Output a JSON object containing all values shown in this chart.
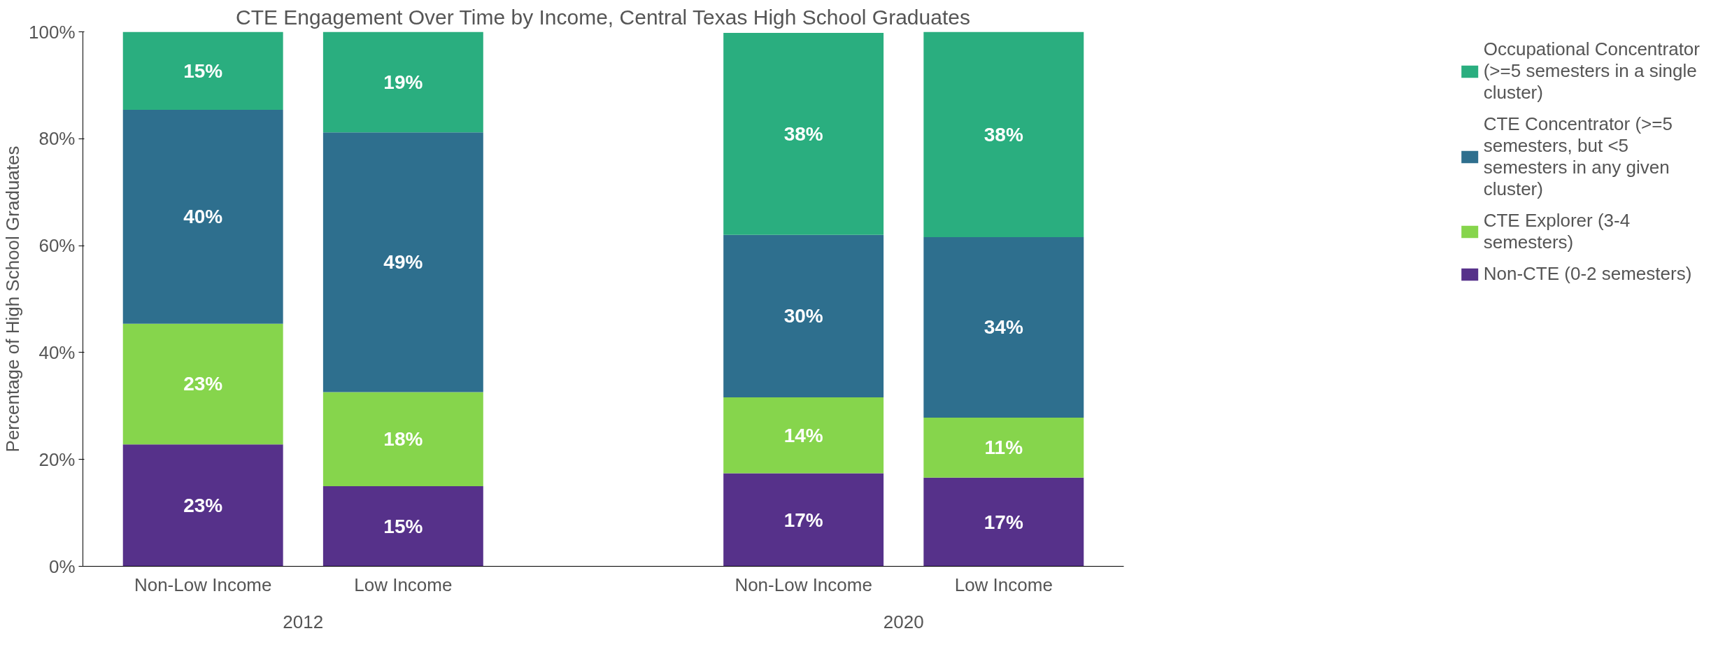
{
  "chart_data": {
    "type": "bar",
    "stacked": true,
    "title": "CTE Engagement Over Time by Income, Central Texas High School Graduates",
    "ylabel": "Percentage of High School Graduates",
    "categories": [
      "Non-Low Income",
      "Low Income",
      null,
      "Non-Low Income",
      "Low Income"
    ],
    "series": [
      {
        "name": "Non-CTE (0-2 semesters)",
        "color": "#56318a",
        "values": [
          22.8,
          15.0,
          null,
          17.4,
          16.6
        ],
        "value_labels": [
          "23%",
          "15%",
          null,
          "17%",
          "17%"
        ]
      },
      {
        "name": "CTE Explorer (3-4 semesters)",
        "color": "#86d54c",
        "values": [
          22.6,
          17.6,
          null,
          14.2,
          11.2
        ],
        "value_labels": [
          "23%",
          "18%",
          null,
          "14%",
          "11%"
        ]
      },
      {
        "name": "CTE Concentrator (>=5 semesters, but <5 semesters in any given cluster)",
        "color": "#2e6f8e",
        "values": [
          40.0,
          48.6,
          null,
          30.4,
          33.8
        ],
        "value_labels": [
          "40%",
          "49%",
          null,
          "30%",
          "34%"
        ]
      },
      {
        "name": "Occupational Concentrator (>=5 semesters in a single cluster)",
        "color": "#2aae7f",
        "values": [
          14.6,
          18.8,
          null,
          37.8,
          38.4
        ],
        "value_labels": [
          "15%",
          "19%",
          null,
          "38%",
          "38%"
        ]
      }
    ],
    "ylim": [
      0,
      100
    ],
    "yticks": [
      {
        "value": 0,
        "label": "0%"
      },
      {
        "value": 20,
        "label": "20%"
      },
      {
        "value": 40,
        "label": "40%"
      },
      {
        "value": 60,
        "label": "60%"
      },
      {
        "value": 80,
        "label": "80%"
      },
      {
        "value": 100,
        "label": "100%"
      }
    ],
    "annotations": [
      "2012",
      "2020"
    ],
    "grid": false,
    "legend": "right"
  }
}
